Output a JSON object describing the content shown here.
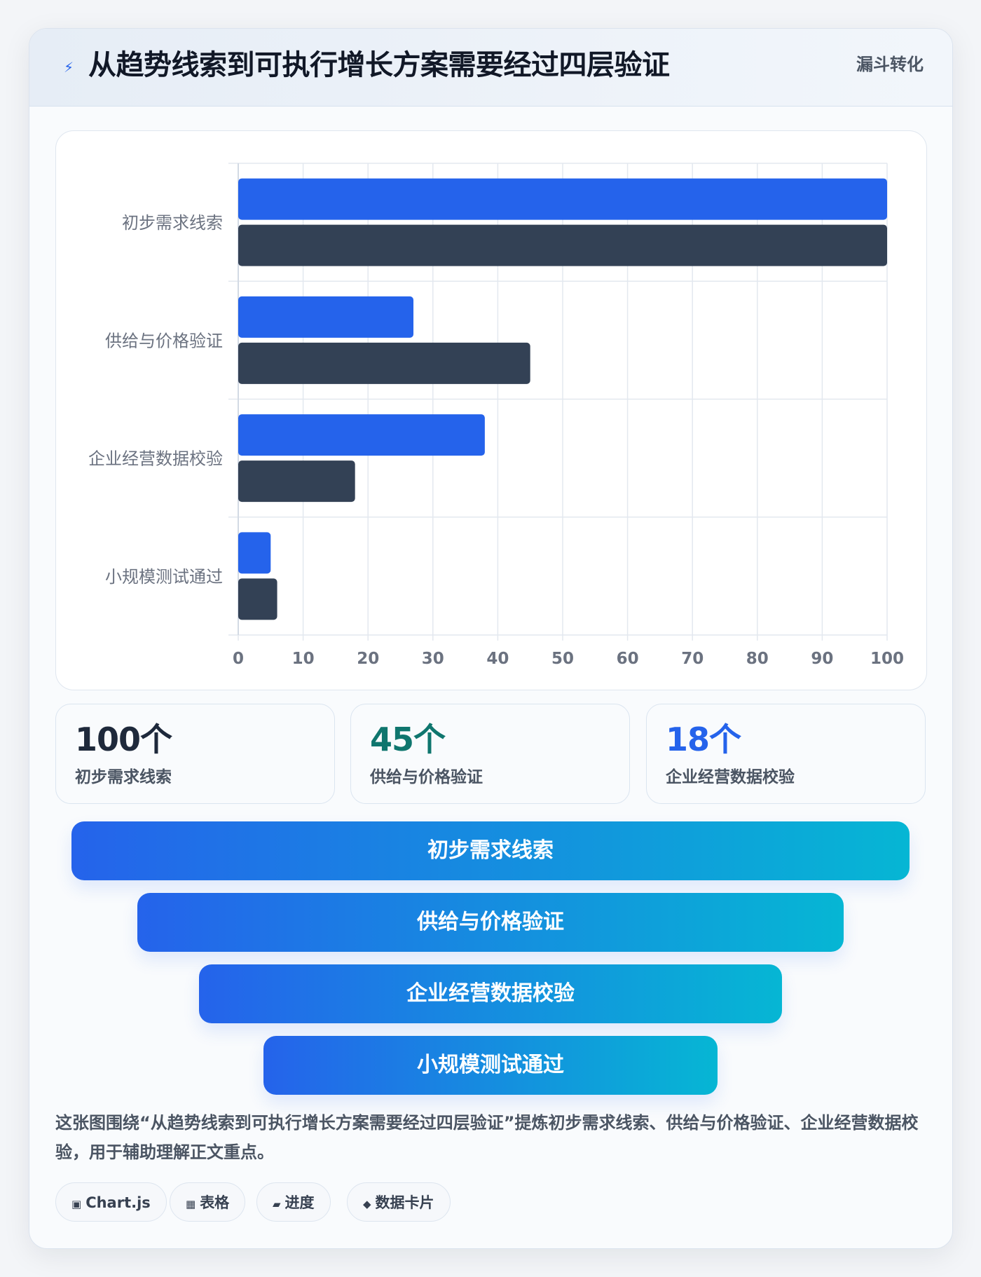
{
  "header": {
    "icon": "bolt-icon",
    "title": "从趋势线索到可执行增长方案需要经过四层验证",
    "tag": "漏斗转化"
  },
  "chart_data": {
    "type": "bar",
    "orientation": "horizontal",
    "categories": [
      "初步需求线索",
      "供给与价格验证",
      "企业经营数据校验",
      "小规模测试通过"
    ],
    "series": [
      {
        "values": [
          100,
          27,
          38,
          5
        ],
        "color": "#2563eb"
      },
      {
        "values": [
          100,
          45,
          18,
          6
        ],
        "color": "#334155"
      }
    ],
    "xlim": [
      0,
      100
    ],
    "xticks": [
      0,
      10,
      20,
      30,
      40,
      50,
      60,
      70,
      80,
      90,
      100
    ],
    "grid": true
  },
  "stats": [
    {
      "value": "100个",
      "label": "初步需求线索",
      "color": "#1e293b"
    },
    {
      "value": "45个",
      "label": "供给与价格验证",
      "color": "#0f766e"
    },
    {
      "value": "18个",
      "label": "企业经营数据校验",
      "color": "#2563eb"
    }
  ],
  "funnel": [
    "初步需求线索",
    "供给与价格验证",
    "企业经营数据校验",
    "小规模测试通过"
  ],
  "description": "这张图围绕“从趋势线索到可执行增长方案需要经过四层验证”提炼初步需求线索、供给与价格验证、企业经营数据校验，用于辅助理解正文重点。",
  "pills": [
    {
      "icon": "▣",
      "icon_name": "chart-icon",
      "label": "Chart.js"
    },
    {
      "icon": "▦",
      "icon_name": "table-icon",
      "label": "表格"
    },
    {
      "icon": "▰",
      "icon_name": "progress-icon",
      "label": "进度"
    },
    {
      "icon": "◆",
      "icon_name": "card-icon",
      "label": "数据卡片"
    }
  ]
}
